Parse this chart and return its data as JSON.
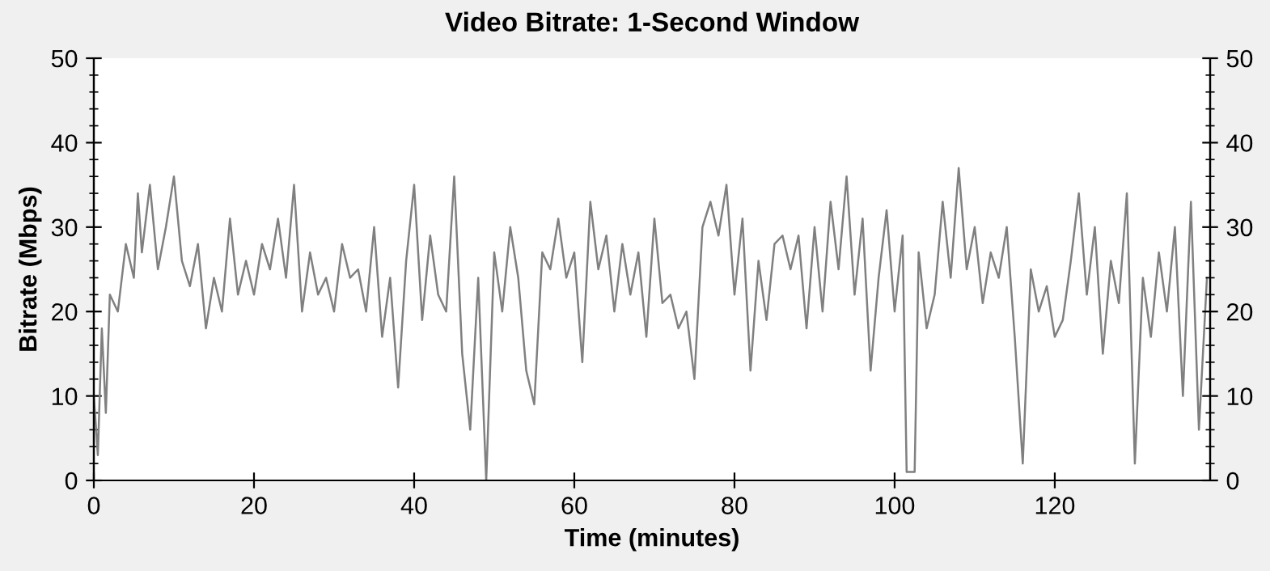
{
  "chart_data": {
    "type": "line",
    "title": "Video Bitrate: 1-Second Window",
    "xlabel": "Time (minutes)",
    "ylabel": "Bitrate (Mbps)",
    "xlim": [
      0,
      139.4
    ],
    "xticks": [
      0,
      20,
      40,
      60,
      80,
      100,
      120
    ],
    "ylim": [
      0,
      50
    ],
    "yticks": [
      0,
      10,
      20,
      30,
      40,
      50
    ],
    "y2lim": [
      0,
      50
    ],
    "y2ticks": [
      0,
      10,
      20,
      30,
      40,
      50
    ],
    "grid": false,
    "marker": "none",
    "line_style": "solid",
    "series": [
      {
        "color": "#808080",
        "x": [
          0,
          0.5,
          1,
          1.5,
          2,
          3,
          4,
          5,
          5.5,
          6,
          7,
          8,
          9,
          10,
          11,
          12,
          13,
          14,
          15,
          16,
          17,
          18,
          19,
          20,
          21,
          22,
          23,
          24,
          25,
          26,
          27,
          28,
          29,
          30,
          31,
          32,
          33,
          34,
          35,
          36,
          37,
          38,
          39,
          40,
          41,
          42,
          43,
          44,
          45,
          46,
          47,
          48,
          49,
          50,
          51,
          52,
          53,
          54,
          55,
          56,
          57,
          58,
          59,
          60,
          61,
          62,
          63,
          64,
          65,
          66,
          67,
          68,
          69,
          70,
          71,
          72,
          73,
          74,
          75,
          76,
          77,
          78,
          79,
          80,
          81,
          82,
          83,
          84,
          85,
          86,
          87,
          88,
          89,
          90,
          91,
          92,
          93,
          94,
          95,
          96,
          97,
          98,
          99,
          100,
          101,
          101.5,
          102.5,
          103,
          104,
          105,
          106,
          107,
          108,
          109,
          110,
          111,
          112,
          113,
          114,
          115,
          116,
          117,
          118,
          119,
          120,
          121,
          122,
          123,
          124,
          125,
          126,
          127,
          128,
          129,
          130,
          131,
          132,
          133,
          134,
          135,
          136,
          137,
          138,
          139
        ],
        "values": [
          10,
          3,
          18,
          8,
          22,
          20,
          28,
          24,
          34,
          27,
          35,
          25,
          30,
          36,
          26,
          23,
          28,
          18,
          24,
          20,
          31,
          22,
          26,
          22,
          28,
          25,
          31,
          24,
          35,
          20,
          27,
          22,
          24,
          20,
          28,
          24,
          25,
          20,
          30,
          17,
          24,
          11,
          26,
          35,
          19,
          29,
          22,
          20,
          36,
          15,
          6,
          24,
          0,
          27,
          20,
          30,
          24,
          13,
          9,
          27,
          25,
          31,
          24,
          27,
          14,
          33,
          25,
          29,
          20,
          28,
          22,
          27,
          17,
          31,
          21,
          22,
          18,
          20,
          12,
          30,
          33,
          29,
          35,
          22,
          31,
          13,
          26,
          19,
          28,
          29,
          25,
          29,
          18,
          30,
          20,
          33,
          25,
          36,
          22,
          31,
          13,
          24,
          32,
          20,
          29,
          1,
          1,
          27,
          18,
          22,
          33,
          24,
          37,
          25,
          30,
          21,
          27,
          24,
          30,
          17,
          2,
          25,
          20,
          23,
          17,
          19,
          26,
          34,
          22,
          30,
          15,
          26,
          21,
          34,
          2,
          24,
          17,
          27,
          20,
          30,
          10,
          33,
          6,
          24
        ]
      }
    ]
  }
}
